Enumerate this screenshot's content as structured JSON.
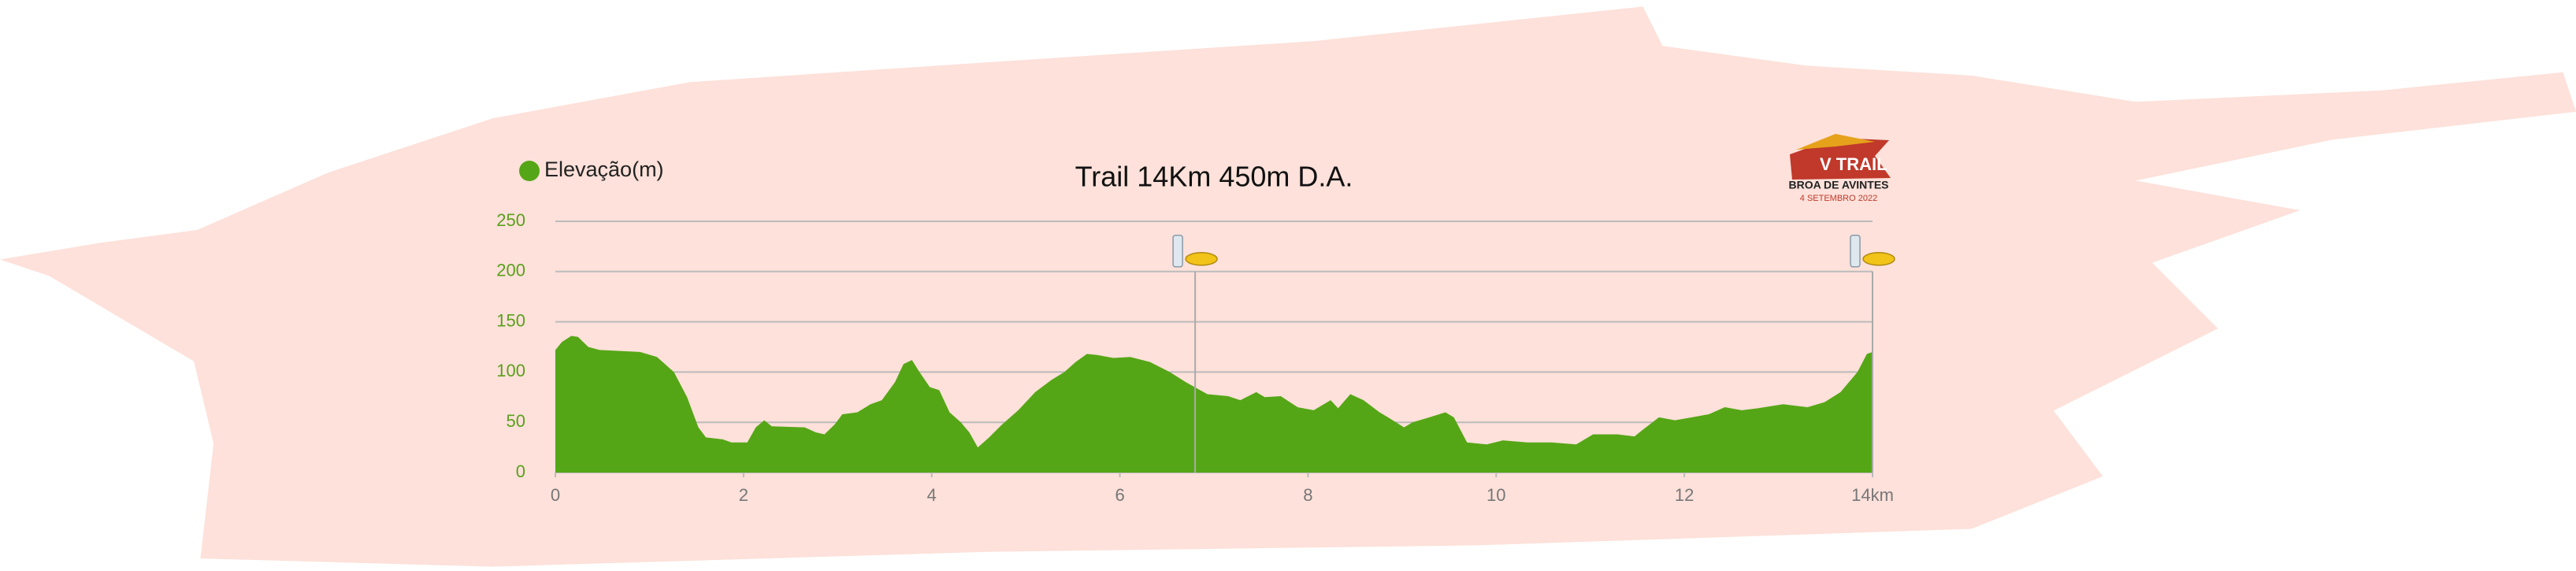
{
  "chart_data": {
    "type": "area",
    "title": "Trail 14Km 450m D.A.",
    "x": [
      0,
      0.07,
      0.17,
      0.24,
      0.35,
      0.47,
      0.9,
      1.08,
      1.26,
      1.4,
      1.52,
      1.6,
      1.78,
      1.87,
      2.04,
      2.13,
      2.22,
      2.3,
      2.65,
      2.77,
      2.86,
      2.97,
      3.05,
      3.21,
      3.35,
      3.47,
      3.61,
      3.7,
      3.79,
      3.87,
      3.98,
      4.08,
      4.19,
      4.31,
      4.4,
      4.49,
      4.61,
      4.75,
      4.92,
      5.1,
      5.27,
      5.41,
      5.53,
      5.65,
      5.76,
      5.93,
      6.11,
      6.32,
      6.53,
      6.7,
      6.93,
      7.15,
      7.28,
      7.45,
      7.54,
      7.71,
      7.89,
      8.06,
      8.24,
      8.32,
      8.45,
      8.59,
      8.76,
      8.85,
      9.02,
      9.11,
      9.29,
      9.46,
      9.55,
      9.69,
      9.9,
      10.07,
      10.33,
      10.59,
      10.85,
      11.03,
      11.29,
      11.47,
      11.55,
      11.73,
      11.9,
      12.08,
      12.26,
      12.43,
      12.61,
      12.78,
      13.05,
      13.31,
      13.49,
      13.66,
      13.84,
      13.94,
      14
    ],
    "series": [
      {
        "name": "Elevação(m)",
        "color": "#55a616",
        "values": [
          122,
          130,
          136,
          135,
          125,
          122,
          120,
          115,
          100,
          75,
          45,
          35,
          33,
          30,
          30,
          45,
          52,
          46,
          45,
          40,
          38,
          48,
          58,
          60,
          68,
          72,
          90,
          108,
          112,
          100,
          85,
          82,
          60,
          50,
          40,
          25,
          35,
          48,
          62,
          80,
          92,
          100,
          110,
          118,
          117,
          114,
          115,
          110,
          100,
          90,
          78,
          76,
          72,
          80,
          75,
          76,
          65,
          62,
          72,
          64,
          78,
          72,
          60,
          55,
          45,
          50,
          55,
          60,
          55,
          30,
          28,
          32,
          30,
          30,
          28,
          38,
          38,
          36,
          42,
          55,
          52,
          55,
          58,
          65,
          62,
          64,
          68,
          65,
          70,
          80,
          100,
          118,
          120
        ]
      }
    ],
    "xlim": [
      0,
      14
    ],
    "xticks": [
      0,
      2,
      4,
      6,
      8,
      10,
      12,
      {
        "value": 14,
        "label": "14km"
      }
    ],
    "ylim": [
      0,
      250
    ],
    "yticks": [
      0,
      50,
      100,
      150,
      200,
      250
    ],
    "grid": true,
    "legend": "top-left",
    "aid_stations": [
      6.8,
      14
    ],
    "aid_station_top": 200
  },
  "logo": {
    "line1": "V TRAIL",
    "line2": "BROA DE AVINTES",
    "line3": "4 SETEMBRO 2022"
  }
}
